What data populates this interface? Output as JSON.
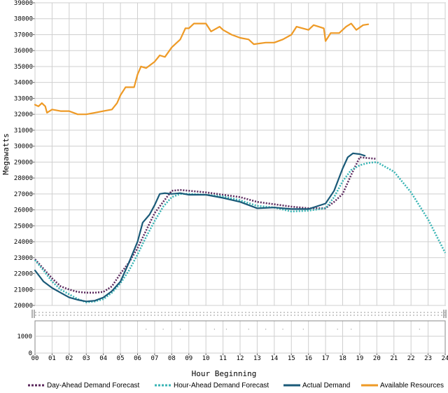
{
  "chart_data": {
    "type": "line",
    "title": "",
    "xlabel": "Hour Beginning",
    "ylabel": "Megawatts",
    "xlim": [
      0,
      24
    ],
    "ylim": [
      20000,
      39000
    ],
    "y_ticks": [
      20000,
      21000,
      22000,
      23000,
      24000,
      25000,
      26000,
      27000,
      28000,
      29000,
      30000,
      31000,
      32000,
      33000,
      34000,
      35000,
      36000,
      37000,
      38000,
      39000
    ],
    "x_tick_labels": [
      "00",
      "01",
      "02",
      "03",
      "04",
      "05",
      "06",
      "07",
      "08",
      "09",
      "10",
      "11",
      "12",
      "13",
      "14",
      "15",
      "16",
      "17",
      "18",
      "19",
      "20",
      "21",
      "22",
      "23",
      "24"
    ],
    "lower_panel_ticks": [
      "1000",
      "0"
    ],
    "grid": true,
    "legend_position": "bottom",
    "series": [
      {
        "name": "Day-Ahead Demand Forecast",
        "color": "#5c2a5e",
        "style": "dotted",
        "points": [
          [
            0,
            22900
          ],
          [
            0.5,
            22300
          ],
          [
            1,
            21700
          ],
          [
            1.5,
            21200
          ],
          [
            2,
            21000
          ],
          [
            2.5,
            20850
          ],
          [
            3,
            20800
          ],
          [
            3.5,
            20800
          ],
          [
            4,
            20850
          ],
          [
            4.5,
            21200
          ],
          [
            5,
            22000
          ],
          [
            5.5,
            22700
          ],
          [
            6,
            23600
          ],
          [
            6.5,
            24700
          ],
          [
            7,
            25800
          ],
          [
            7.5,
            26500
          ],
          [
            8,
            27200
          ],
          [
            8.5,
            27250
          ],
          [
            9,
            27200
          ],
          [
            10,
            27100
          ],
          [
            11,
            26950
          ],
          [
            12,
            26800
          ],
          [
            13,
            26500
          ],
          [
            14,
            26350
          ],
          [
            15,
            26200
          ],
          [
            16,
            26100
          ],
          [
            17,
            26100
          ],
          [
            17.5,
            26500
          ],
          [
            18,
            27000
          ],
          [
            18.5,
            28200
          ],
          [
            19,
            29300
          ],
          [
            19.5,
            29250
          ],
          [
            20,
            29200
          ]
        ]
      },
      {
        "name": "Hour-Ahead Demand Forecast",
        "color": "#3ab5b5",
        "style": "dotted",
        "points": [
          [
            0,
            22850
          ],
          [
            0.5,
            22200
          ],
          [
            1,
            21500
          ],
          [
            1.5,
            21000
          ],
          [
            2,
            20700
          ],
          [
            2.5,
            20400
          ],
          [
            3,
            20200
          ],
          [
            3.5,
            20250
          ],
          [
            4,
            20400
          ],
          [
            4.5,
            20800
          ],
          [
            5,
            21400
          ],
          [
            5.5,
            22200
          ],
          [
            6,
            23200
          ],
          [
            6.5,
            24300
          ],
          [
            7,
            25300
          ],
          [
            7.5,
            26200
          ],
          [
            8,
            26800
          ],
          [
            8.5,
            27000
          ],
          [
            9,
            27000
          ],
          [
            10,
            26950
          ],
          [
            11,
            26850
          ],
          [
            12,
            26600
          ],
          [
            13,
            26250
          ],
          [
            14,
            26150
          ],
          [
            15,
            25900
          ],
          [
            16,
            25950
          ],
          [
            17,
            26100
          ],
          [
            17.5,
            26800
          ],
          [
            18,
            27800
          ],
          [
            18.5,
            28500
          ],
          [
            19,
            28800
          ],
          [
            19.5,
            28950
          ],
          [
            20,
            29000
          ],
          [
            21,
            28400
          ],
          [
            22,
            27100
          ],
          [
            23,
            25400
          ],
          [
            24,
            23300
          ]
        ]
      },
      {
        "name": "Actual Demand",
        "color": "#1a5a78",
        "style": "solid",
        "points": [
          [
            0,
            22200
          ],
          [
            0.5,
            21500
          ],
          [
            1,
            21100
          ],
          [
            1.5,
            20800
          ],
          [
            2,
            20500
          ],
          [
            2.5,
            20350
          ],
          [
            3,
            20250
          ],
          [
            3.5,
            20300
          ],
          [
            4,
            20500
          ],
          [
            4.5,
            20900
          ],
          [
            5,
            21500
          ],
          [
            5.5,
            22700
          ],
          [
            6,
            24000
          ],
          [
            6.3,
            25200
          ],
          [
            6.7,
            25700
          ],
          [
            7,
            26300
          ],
          [
            7.3,
            27000
          ],
          [
            7.6,
            27050
          ],
          [
            8,
            27000
          ],
          [
            8.5,
            27050
          ],
          [
            9,
            26950
          ],
          [
            10,
            26950
          ],
          [
            11,
            26750
          ],
          [
            12,
            26500
          ],
          [
            13,
            26100
          ],
          [
            14,
            26150
          ],
          [
            15,
            26050
          ],
          [
            16,
            26050
          ],
          [
            17,
            26400
          ],
          [
            17.5,
            27200
          ],
          [
            18,
            28600
          ],
          [
            18.3,
            29300
          ],
          [
            18.6,
            29550
          ],
          [
            19,
            29500
          ],
          [
            19.3,
            29400
          ]
        ]
      },
      {
        "name": "Available Resources",
        "color": "#ee9a26",
        "style": "solid",
        "points": [
          [
            0,
            32600
          ],
          [
            0.2,
            32500
          ],
          [
            0.4,
            32700
          ],
          [
            0.6,
            32500
          ],
          [
            0.7,
            32100
          ],
          [
            1,
            32300
          ],
          [
            1.5,
            32200
          ],
          [
            2,
            32200
          ],
          [
            2.5,
            32000
          ],
          [
            3,
            32000
          ],
          [
            3.5,
            32100
          ],
          [
            4,
            32200
          ],
          [
            4.5,
            32300
          ],
          [
            4.8,
            32700
          ],
          [
            5,
            33200
          ],
          [
            5.3,
            33700
          ],
          [
            5.8,
            33700
          ],
          [
            6,
            34500
          ],
          [
            6.2,
            35000
          ],
          [
            6.5,
            34900
          ],
          [
            7,
            35300
          ],
          [
            7.3,
            35700
          ],
          [
            7.6,
            35600
          ],
          [
            8,
            36200
          ],
          [
            8.5,
            36700
          ],
          [
            8.8,
            37400
          ],
          [
            9,
            37400
          ],
          [
            9.3,
            37700
          ],
          [
            10,
            37700
          ],
          [
            10.3,
            37200
          ],
          [
            10.8,
            37500
          ],
          [
            11,
            37300
          ],
          [
            11.5,
            37000
          ],
          [
            12,
            36800
          ],
          [
            12.5,
            36700
          ],
          [
            12.8,
            36400
          ],
          [
            13.5,
            36500
          ],
          [
            14,
            36500
          ],
          [
            14.5,
            36700
          ],
          [
            15,
            37000
          ],
          [
            15.3,
            37500
          ],
          [
            16,
            37300
          ],
          [
            16.3,
            37600
          ],
          [
            16.6,
            37500
          ],
          [
            16.9,
            37400
          ],
          [
            17,
            36600
          ],
          [
            17.3,
            37100
          ],
          [
            17.8,
            37100
          ],
          [
            18.2,
            37500
          ],
          [
            18.5,
            37700
          ],
          [
            18.8,
            37300
          ],
          [
            19.2,
            37600
          ],
          [
            19.5,
            37650
          ]
        ]
      }
    ]
  }
}
